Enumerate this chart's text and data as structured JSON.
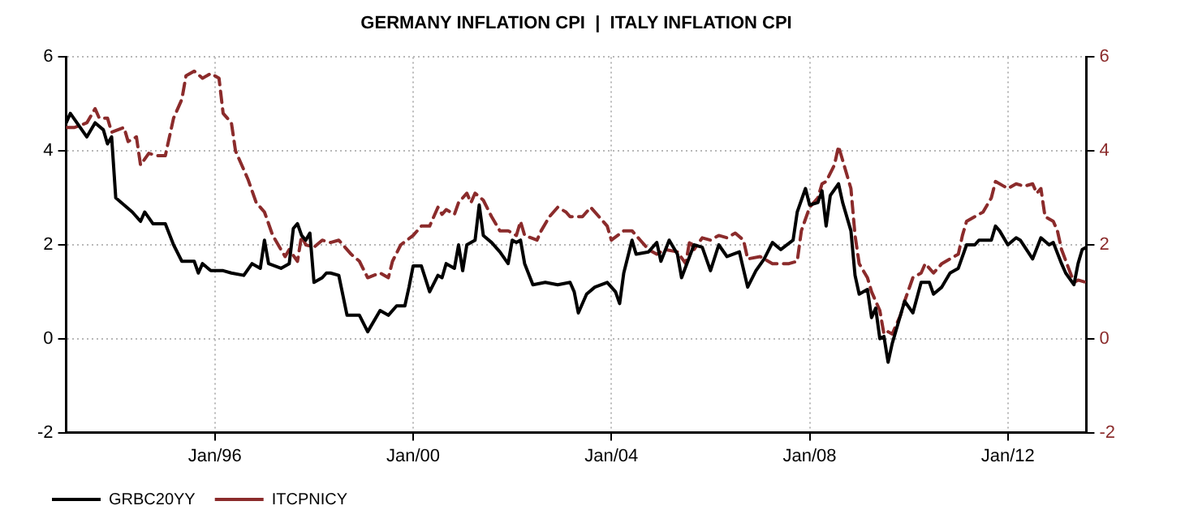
{
  "chart_data": {
    "type": "line",
    "title": "GERMANY INFLATION CPI  |  ITALY INFLATION CPI",
    "xlim": [
      "1993-01",
      "2013-08"
    ],
    "xticks": [
      {
        "value": "1996-01",
        "label": "Jan/96"
      },
      {
        "value": "2000-01",
        "label": "Jan/00"
      },
      {
        "value": "2004-01",
        "label": "Jan/04"
      },
      {
        "value": "2008-01",
        "label": "Jan/08"
      },
      {
        "value": "2012-01",
        "label": "Jan/12"
      }
    ],
    "ylim": [
      -2,
      6
    ],
    "yticks": [
      -2,
      0,
      2,
      4,
      6
    ],
    "y2lim": [
      -2,
      6
    ],
    "y2ticks": [
      -2,
      0,
      2,
      4,
      6
    ],
    "grid": true,
    "legend": "bottom left",
    "marker": "none",
    "series": [
      {
        "name": "GRBC20YY",
        "color": "#000000",
        "line_style": "solid",
        "x": [
          "1993-01",
          "1993-02",
          "1993-06",
          "1993-08",
          "1993-10",
          "1993-11",
          "1993-12",
          "1994-01",
          "1994-03",
          "1994-05",
          "1994-07",
          "1994-08",
          "1994-10",
          "1995-01",
          "1995-03",
          "1995-05",
          "1995-08",
          "1995-09",
          "1995-10",
          "1995-12",
          "1996-03",
          "1996-05",
          "1996-08",
          "1996-10",
          "1996-12",
          "1997-01",
          "1997-02",
          "1997-05",
          "1997-07",
          "1997-08",
          "1997-09",
          "1997-10",
          "1997-11",
          "1997-12",
          "1998-01",
          "1998-03",
          "1998-04",
          "1998-05",
          "1998-07",
          "1998-09",
          "1998-12",
          "1999-02",
          "1999-05",
          "1999-07",
          "1999-09",
          "1999-11",
          "1999-12",
          "2000-01",
          "2000-03",
          "2000-05",
          "2000-07",
          "2000-08",
          "2000-09",
          "2000-11",
          "2000-12",
          "2001-01",
          "2001-02",
          "2001-04",
          "2001-05",
          "2001-06",
          "2001-08",
          "2001-10",
          "2001-12",
          "2002-01",
          "2002-02",
          "2002-03",
          "2002-04",
          "2002-06",
          "2002-09",
          "2002-12",
          "2003-03",
          "2003-04",
          "2003-05",
          "2003-07",
          "2003-09",
          "2003-12",
          "2004-02",
          "2004-03",
          "2004-04",
          "2004-06",
          "2004-07",
          "2004-10",
          "2004-12",
          "2005-01",
          "2005-03",
          "2005-05",
          "2005-06",
          "2005-09",
          "2005-11",
          "2006-01",
          "2006-03",
          "2006-05",
          "2006-08",
          "2006-10",
          "2006-12",
          "2007-02",
          "2007-04",
          "2007-06",
          "2007-09",
          "2007-10",
          "2007-12",
          "2008-01",
          "2008-03",
          "2008-04",
          "2008-05",
          "2008-06",
          "2008-08",
          "2008-09",
          "2008-11",
          "2008-12",
          "2009-01",
          "2009-03",
          "2009-04",
          "2009-05",
          "2009-06",
          "2009-07",
          "2009-08",
          "2009-09",
          "2009-10",
          "2009-12",
          "2010-02",
          "2010-04",
          "2010-06",
          "2010-07",
          "2010-09",
          "2010-11",
          "2011-01",
          "2011-03",
          "2011-05",
          "2011-06",
          "2011-09",
          "2011-10",
          "2011-11",
          "2012-01",
          "2012-03",
          "2012-04",
          "2012-07",
          "2012-09",
          "2012-11",
          "2012-12",
          "2013-02",
          "2013-03",
          "2013-05",
          "2013-06",
          "2013-07",
          "2013-08"
        ],
        "values": [
          4.6,
          4.8,
          4.3,
          4.6,
          4.45,
          4.15,
          4.3,
          3.0,
          2.85,
          2.7,
          2.5,
          2.7,
          2.45,
          2.45,
          2.0,
          1.65,
          1.65,
          1.4,
          1.6,
          1.45,
          1.45,
          1.4,
          1.35,
          1.6,
          1.5,
          2.1,
          1.6,
          1.5,
          1.6,
          2.35,
          2.45,
          2.2,
          2.1,
          2.25,
          1.2,
          1.3,
          1.4,
          1.4,
          1.35,
          0.5,
          0.5,
          0.15,
          0.6,
          0.5,
          0.7,
          0.7,
          1.1,
          1.55,
          1.55,
          1.0,
          1.35,
          1.3,
          1.6,
          1.5,
          2.0,
          1.45,
          2.0,
          2.1,
          2.85,
          2.2,
          2.05,
          1.85,
          1.6,
          2.1,
          2.05,
          2.1,
          1.6,
          1.15,
          1.2,
          1.15,
          1.2,
          1.0,
          0.55,
          0.95,
          1.1,
          1.2,
          1.0,
          0.75,
          1.4,
          2.1,
          1.8,
          1.85,
          2.05,
          1.65,
          2.1,
          1.8,
          1.3,
          2.0,
          1.95,
          1.45,
          2.0,
          1.75,
          1.85,
          1.1,
          1.45,
          1.7,
          2.05,
          1.9,
          2.1,
          2.7,
          3.2,
          2.85,
          2.9,
          3.15,
          2.4,
          3.05,
          3.3,
          2.9,
          2.3,
          1.35,
          0.95,
          1.05,
          0.45,
          0.65,
          0.0,
          0.05,
          -0.5,
          -0.1,
          0.2,
          0.8,
          0.55,
          1.2,
          1.2,
          0.95,
          1.1,
          1.4,
          1.5,
          2.0,
          2.0,
          2.1,
          2.1,
          2.4,
          2.3,
          2.0,
          2.15,
          2.1,
          1.7,
          2.15,
          2.0,
          2.05,
          1.6,
          1.4,
          1.15,
          1.6,
          1.9,
          1.95
        ]
      },
      {
        "name": "ITCPNICY",
        "color": "#8b2b2b",
        "line_style": "dashed",
        "axis": "y2",
        "x": [
          "1993-01",
          "1993-03",
          "1993-06",
          "1993-08",
          "1993-09",
          "1993-11",
          "1993-12",
          "1994-03",
          "1994-04",
          "1994-06",
          "1994-07",
          "1994-09",
          "1994-11",
          "1995-01",
          "1995-03",
          "1995-05",
          "1995-06",
          "1995-08",
          "1995-10",
          "1995-12",
          "1996-02",
          "1996-03",
          "1996-05",
          "1996-06",
          "1996-09",
          "1996-11",
          "1997-01",
          "1997-03",
          "1997-05",
          "1997-06",
          "1997-07",
          "1997-09",
          "1997-10",
          "1997-11",
          "1998-01",
          "1998-03",
          "1998-05",
          "1998-07",
          "1998-10",
          "1998-12",
          "1999-02",
          "1999-05",
          "1999-07",
          "1999-08",
          "1999-10",
          "2000-01",
          "2000-03",
          "2000-05",
          "2000-07",
          "2000-08",
          "2000-09",
          "2000-11",
          "2000-12",
          "2001-02",
          "2001-03",
          "2001-04",
          "2001-06",
          "2001-08",
          "2001-10",
          "2001-12",
          "2002-02",
          "2002-03",
          "2002-04",
          "2002-07",
          "2002-08",
          "2002-10",
          "2002-12",
          "2003-02",
          "2003-03",
          "2003-06",
          "2003-08",
          "2003-10",
          "2003-12",
          "2004-01",
          "2004-04",
          "2004-06",
          "2004-08",
          "2004-10",
          "2004-12",
          "2005-02",
          "2005-05",
          "2005-07",
          "2005-08",
          "2005-09",
          "2005-11",
          "2006-01",
          "2006-03",
          "2006-05",
          "2006-07",
          "2006-09",
          "2006-10",
          "2007-01",
          "2007-04",
          "2007-06",
          "2007-08",
          "2007-10",
          "2007-11",
          "2008-01",
          "2008-03",
          "2008-04",
          "2008-05",
          "2008-07",
          "2008-08",
          "2008-09",
          "2008-11",
          "2008-12",
          "2009-01",
          "2009-03",
          "2009-04",
          "2009-06",
          "2009-07",
          "2009-08",
          "2009-09",
          "2009-11",
          "2009-12",
          "2010-02",
          "2010-04",
          "2010-05",
          "2010-07",
          "2010-09",
          "2010-11",
          "2011-01",
          "2011-02",
          "2011-03",
          "2011-05",
          "2011-07",
          "2011-09",
          "2011-10",
          "2011-12",
          "2012-01",
          "2012-03",
          "2012-05",
          "2012-07",
          "2012-08",
          "2012-09",
          "2012-10",
          "2012-12",
          "2013-01",
          "2013-02",
          "2013-05",
          "2013-06",
          "2013-08"
        ],
        "values": [
          4.5,
          4.5,
          4.6,
          4.9,
          4.7,
          4.7,
          4.4,
          4.5,
          4.2,
          4.3,
          3.7,
          3.95,
          3.9,
          3.9,
          4.7,
          5.1,
          5.6,
          5.7,
          5.55,
          5.65,
          5.55,
          4.8,
          4.6,
          4.0,
          3.4,
          2.9,
          2.7,
          2.2,
          1.9,
          1.75,
          1.9,
          1.65,
          2.2,
          2.0,
          1.95,
          2.1,
          2.05,
          2.1,
          1.8,
          1.65,
          1.3,
          1.4,
          1.3,
          1.65,
          2.0,
          2.2,
          2.4,
          2.4,
          2.8,
          2.65,
          2.75,
          2.65,
          2.9,
          3.1,
          2.9,
          3.1,
          2.95,
          2.6,
          2.3,
          2.3,
          2.2,
          2.5,
          2.2,
          2.1,
          2.3,
          2.6,
          2.8,
          2.7,
          2.6,
          2.6,
          2.8,
          2.6,
          2.4,
          2.1,
          2.3,
          2.3,
          2.1,
          1.9,
          1.8,
          1.9,
          1.85,
          1.6,
          2.1,
          1.9,
          2.15,
          2.1,
          2.2,
          2.15,
          2.25,
          2.1,
          1.7,
          1.75,
          1.6,
          1.6,
          1.6,
          1.65,
          2.3,
          2.8,
          3.0,
          3.3,
          3.35,
          3.7,
          4.1,
          3.8,
          3.2,
          2.2,
          1.6,
          1.3,
          1.0,
          0.6,
          0.1,
          0.15,
          0.1,
          0.5,
          0.8,
          1.3,
          1.4,
          1.6,
          1.4,
          1.6,
          1.7,
          1.8,
          2.2,
          2.5,
          2.6,
          2.7,
          3.0,
          3.35,
          3.25,
          3.2,
          3.3,
          3.25,
          3.3,
          3.1,
          3.2,
          2.6,
          2.5,
          2.3,
          1.9,
          1.2,
          1.25,
          1.2
        ]
      }
    ]
  }
}
